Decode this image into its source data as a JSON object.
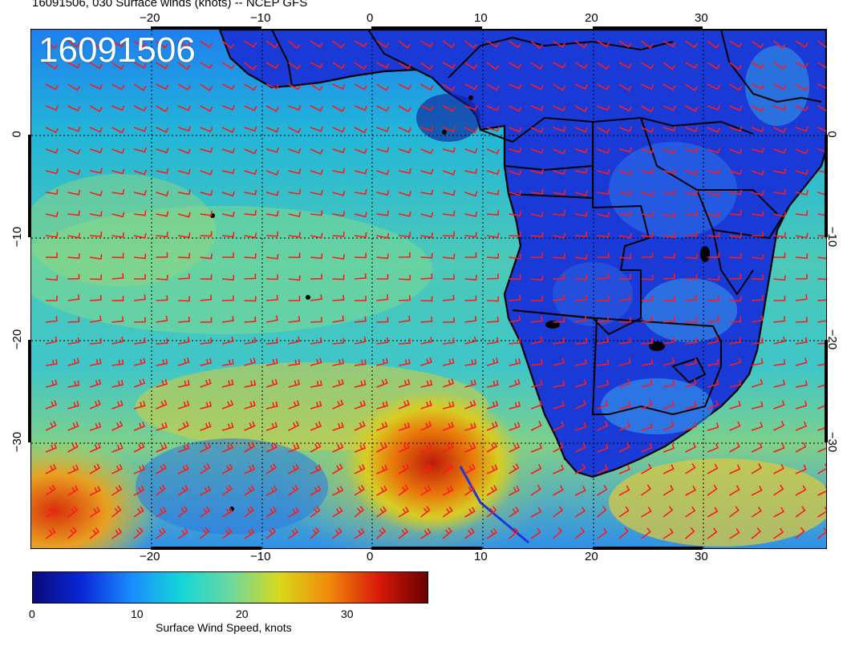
{
  "title": "16091506, 030 Surface winds (knots) -- NCEP GFS",
  "stamp": "16091506",
  "map": {
    "x_ticks": [
      "−20",
      "−10",
      "0",
      "10",
      "20",
      "30"
    ],
    "y_ticks": [
      "0",
      "−10",
      "−20",
      "−30"
    ]
  },
  "colorbar": {
    "title": "Surface Wind Speed, knots",
    "labels": [
      "0",
      "10",
      "20",
      "30"
    ],
    "colors": [
      "#0a0a7a",
      "#0a28d8",
      "#1a8cff",
      "#12d6d6",
      "#6cd8a0",
      "#d8d81a",
      "#f08a0a",
      "#d81a0a",
      "#6a0000"
    ]
  },
  "wind_barb_color": "#ff1a1a"
}
